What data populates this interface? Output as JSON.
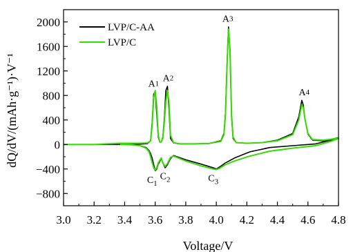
{
  "chart_data": {
    "type": "line",
    "xlabel": "Voltage/V",
    "ylabel": "dQ/dV/(mAh·g⁻¹)·V⁻¹",
    "xlim": [
      3.0,
      4.8
    ],
    "ylim": [
      -1000,
      2200
    ],
    "x_ticks": [
      3.0,
      3.2,
      3.4,
      3.6,
      3.8,
      4.0,
      4.2,
      4.4,
      4.6,
      4.8
    ],
    "x_tick_labels": [
      "3.0",
      "3.2",
      "3.4",
      "3.6",
      "3.8",
      "4.0",
      "4.2",
      "4.4",
      "4.6",
      "4.8"
    ],
    "y_ticks": [
      -800,
      -400,
      0,
      400,
      800,
      1200,
      1600,
      2000
    ],
    "y_tick_labels": [
      "−800",
      "−400",
      "0",
      "400",
      "800",
      "1200",
      "1600",
      "2000"
    ],
    "legend_position": "top-left",
    "grid": false,
    "series": [
      {
        "name": "LVP/C-AA",
        "color": "#000000",
        "x": [
          3.0,
          3.2,
          3.4,
          3.5,
          3.55,
          3.57,
          3.58,
          3.59,
          3.6,
          3.61,
          3.62,
          3.63,
          3.64,
          3.65,
          3.66,
          3.67,
          3.68,
          3.69,
          3.7,
          3.72,
          3.76,
          3.85,
          3.95,
          4.03,
          4.05,
          4.06,
          4.07,
          4.08,
          4.09,
          4.1,
          4.11,
          4.13,
          4.2,
          4.3,
          4.4,
          4.5,
          4.54,
          4.56,
          4.57,
          4.58,
          4.6,
          4.63,
          4.7,
          4.8,
          4.75,
          4.65,
          4.5,
          4.35,
          4.22,
          4.12,
          4.06,
          4.02,
          4.0,
          3.98,
          3.9,
          3.8,
          3.72,
          3.7,
          3.68,
          3.665,
          3.65,
          3.64,
          3.62,
          3.61,
          3.6,
          3.59,
          3.58,
          3.57,
          3.56,
          3.54,
          3.5,
          3.45,
          3.4
        ],
        "y": [
          0,
          0,
          0,
          5,
          15,
          60,
          350,
          820,
          860,
          500,
          120,
          40,
          40,
          120,
          420,
          880,
          950,
          580,
          100,
          25,
          10,
          10,
          15,
          60,
          180,
          520,
          1300,
          1920,
          1500,
          450,
          100,
          30,
          20,
          30,
          70,
          180,
          450,
          720,
          640,
          420,
          170,
          70,
          60,
          110,
          70,
          10,
          -20,
          -50,
          -120,
          -220,
          -300,
          -370,
          -400,
          -380,
          -320,
          -250,
          -180,
          -230,
          -330,
          -380,
          -300,
          -230,
          -320,
          -400,
          -430,
          -330,
          -220,
          -150,
          -100,
          -50,
          -20,
          -5,
          0
        ]
      },
      {
        "name": "LVP/C",
        "color": "#33dd00",
        "x": [
          3.0,
          3.2,
          3.37,
          3.5,
          3.55,
          3.57,
          3.58,
          3.59,
          3.6,
          3.61,
          3.62,
          3.63,
          3.64,
          3.65,
          3.66,
          3.67,
          3.68,
          3.69,
          3.7,
          3.72,
          3.76,
          3.85,
          3.95,
          4.03,
          4.05,
          4.06,
          4.07,
          4.08,
          4.09,
          4.1,
          4.11,
          4.13,
          4.2,
          4.3,
          4.4,
          4.5,
          4.54,
          4.56,
          4.57,
          4.58,
          4.6,
          4.63,
          4.7,
          4.8,
          4.75,
          4.65,
          4.5,
          4.35,
          4.22,
          4.12,
          4.06,
          4.02,
          4.0,
          3.98,
          3.9,
          3.8,
          3.72,
          3.7,
          3.68,
          3.665,
          3.65,
          3.64,
          3.62,
          3.61,
          3.6,
          3.59,
          3.58,
          3.57,
          3.56,
          3.54,
          3.5,
          3.45,
          3.37
        ],
        "y": [
          0,
          0,
          20,
          20,
          25,
          60,
          300,
          760,
          880,
          620,
          150,
          40,
          40,
          100,
          360,
          700,
          880,
          700,
          150,
          30,
          10,
          10,
          15,
          50,
          160,
          480,
          1250,
          1880,
          1550,
          500,
          120,
          30,
          20,
          30,
          60,
          160,
          400,
          650,
          600,
          420,
          180,
          80,
          70,
          100,
          50,
          -20,
          -60,
          -110,
          -190,
          -270,
          -330,
          -390,
          -410,
          -400,
          -350,
          -270,
          -190,
          -210,
          -310,
          -360,
          -300,
          -220,
          -300,
          -380,
          -420,
          -380,
          -290,
          -200,
          -120,
          -60,
          -20,
          -5,
          0
        ]
      }
    ],
    "annotations": [
      {
        "base": "A",
        "sub": "1",
        "x": 3.59,
        "y": 900
      },
      {
        "base": "A",
        "sub": "2",
        "x": 3.685,
        "y": 990
      },
      {
        "base": "A",
        "sub": "3",
        "x": 4.075,
        "y": 1960
      },
      {
        "base": "A",
        "sub": "4",
        "x": 4.575,
        "y": 760
      },
      {
        "base": "C",
        "sub": "1",
        "x": 3.58,
        "y": -470
      },
      {
        "base": "C",
        "sub": "2",
        "x": 3.665,
        "y": -410
      },
      {
        "base": "C",
        "sub": "3",
        "x": 3.98,
        "y": -440
      }
    ]
  }
}
